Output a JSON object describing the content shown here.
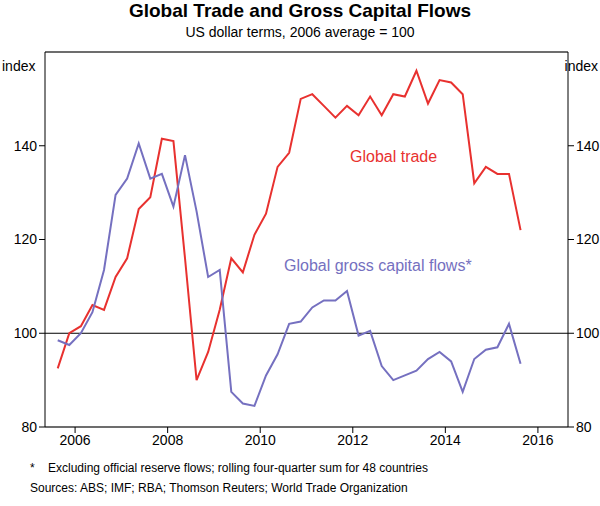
{
  "chart_data": {
    "type": "line",
    "title": "Global Trade and Gross Capital Flows",
    "subtitle": "US dollar terms, 2006 average = 100",
    "y_label": "index",
    "notes": [
      "*    Excluding official reserve flows; rolling four-quarter sum for 48 countries",
      "Sources: ABS; IMF; RBA; Thomson Reuters; World Trade Organization"
    ],
    "x": [
      2005.625,
      2005.875,
      2006.125,
      2006.375,
      2006.625,
      2006.875,
      2007.125,
      2007.375,
      2007.625,
      2007.875,
      2008.125,
      2008.375,
      2008.625,
      2008.875,
      2009.125,
      2009.375,
      2009.625,
      2009.875,
      2010.125,
      2010.375,
      2010.625,
      2010.875,
      2011.125,
      2011.375,
      2011.625,
      2011.875,
      2012.125,
      2012.375,
      2012.625,
      2012.875,
      2013.125,
      2013.375,
      2013.625,
      2013.875,
      2014.125,
      2014.375,
      2014.625,
      2014.875,
      2015.125,
      2015.375,
      2015.625
    ],
    "series": [
      {
        "name": "Global trade",
        "color": "#e8312f",
        "values": [
          92.5,
          100,
          101.5,
          106,
          105,
          112,
          116,
          126.5,
          129,
          141.5,
          141,
          116,
          90,
          96,
          105,
          116,
          113,
          121,
          125.5,
          135.5,
          138.5,
          150,
          151,
          148.5,
          146,
          148.5,
          146.5,
          150.5,
          146.5,
          151,
          150.5,
          156,
          149,
          154,
          153.5,
          151,
          132,
          135.5,
          134,
          134,
          122
        ]
      },
      {
        "name": "Global gross capital flows*",
        "color": "#7570c0",
        "values": [
          98.5,
          97.5,
          100,
          104.5,
          113.5,
          129.5,
          133,
          140.5,
          133,
          134,
          127,
          138,
          126,
          112,
          113.5,
          87.5,
          85,
          84.5,
          91,
          95.5,
          102,
          102.5,
          105.5,
          107,
          107,
          109,
          99.5,
          100.5,
          93,
          90,
          91,
          92,
          94.5,
          96,
          94,
          87.5,
          94.5,
          96.5,
          97,
          102,
          93.5
        ]
      }
    ],
    "xlim": [
      2005.35,
      2016.65
    ],
    "xticks": [
      2006,
      2008,
      2010,
      2012,
      2014,
      2016
    ],
    "ylim": [
      80,
      160
    ],
    "yticks": [
      80,
      100,
      120,
      140
    ],
    "grid": true
  }
}
